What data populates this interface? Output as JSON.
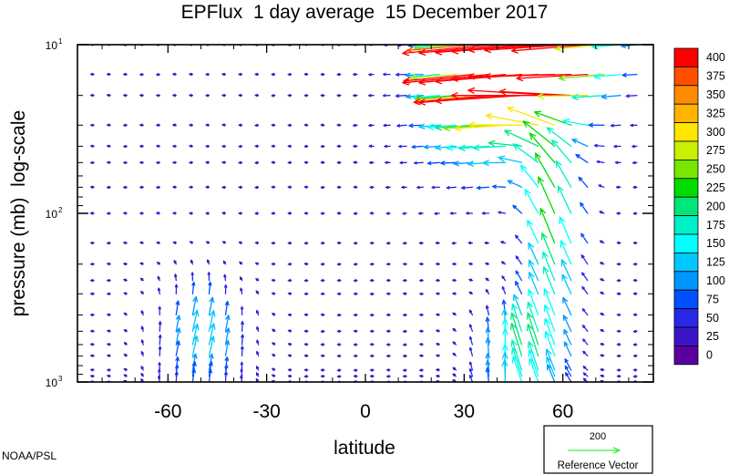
{
  "chart_data": {
    "type": "vector_field",
    "title": "EPFlux  1 day average  15 December 2017",
    "xlabel": "latitude",
    "ylabel": "pressure (mb)  log-scale",
    "x_ticks": [
      -60,
      -30,
      0,
      30,
      60
    ],
    "x_tick_labels": [
      "-60",
      "-30",
      "0",
      "30",
      "60"
    ],
    "xlim": [
      -87.5,
      87.5
    ],
    "y_scale": "log",
    "ylim": [
      1000,
      10
    ],
    "y_tick_labels": [
      {
        "value": 10,
        "base": "10",
        "exp": "1"
      },
      {
        "value": 100,
        "base": "10",
        "exp": "2"
      },
      {
        "value": 1000,
        "base": "10",
        "exp": "3"
      }
    ],
    "colorbar": {
      "levels": [
        "400",
        "375",
        "350",
        "325",
        "300",
        "275",
        "250",
        "225",
        "200",
        "175",
        "150",
        "125",
        "100",
        "75",
        "50",
        "25",
        "0"
      ],
      "colors": [
        "#ff0000",
        "#ff5000",
        "#ff8c00",
        "#ffb400",
        "#ffe600",
        "#c8f000",
        "#78e600",
        "#00dc00",
        "#00e678",
        "#00f0c8",
        "#00ffff",
        "#00c8ff",
        "#0096ff",
        "#0050ff",
        "#2828e6",
        "#3c14c8",
        "#5a00a0"
      ]
    },
    "reference_vector": {
      "value": "200",
      "label": "Reference Vector",
      "color": "#3cf03c"
    },
    "source_label": "NOAA/PSL"
  }
}
